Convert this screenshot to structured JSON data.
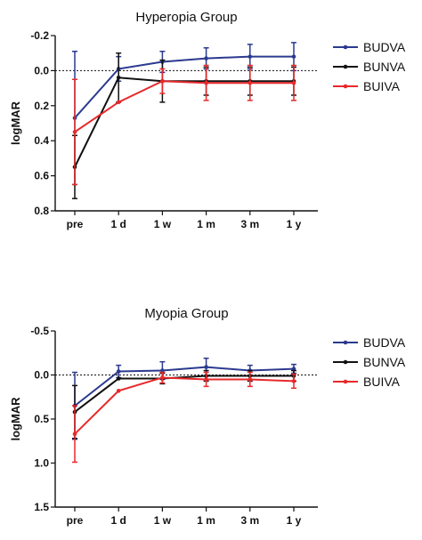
{
  "chart_data": [
    {
      "type": "line",
      "title": "Hyperopia Group",
      "xlabel": "",
      "ylabel": "logMAR",
      "categories": [
        "pre",
        "1 d",
        "1 w",
        "1 m",
        "3 m",
        "1 y"
      ],
      "ylim": [
        0.8,
        -0.2
      ],
      "yticks": [
        -0.2,
        0.0,
        0.2,
        0.4,
        0.6,
        0.8
      ],
      "ytick_labels": [
        "-0.2",
        "0.0",
        "0.2",
        "0.4",
        "0.6",
        "0.8"
      ],
      "reference_line": 0.0,
      "grid": false,
      "legend": "top-right",
      "series": [
        {
          "name": "BUDVA",
          "color": "#2b3a8f",
          "values": [
            0.27,
            -0.01,
            -0.05,
            -0.07,
            -0.08,
            -0.08
          ],
          "error": [
            0.38,
            0.07,
            0.06,
            0.06,
            0.07,
            0.08
          ]
        },
        {
          "name": "BUNVA",
          "color": "#111111",
          "values": [
            0.55,
            0.04,
            0.06,
            0.06,
            0.06,
            0.06
          ],
          "error": [
            0.18,
            0.14,
            0.12,
            0.08,
            0.08,
            0.08
          ]
        },
        {
          "name": "BUIVA",
          "color": "#e8282b",
          "values": [
            0.35,
            0.18,
            0.06,
            0.07,
            0.07,
            0.07
          ],
          "error": [
            0.3,
            0.0,
            0.07,
            0.1,
            0.1,
            0.1
          ]
        }
      ]
    },
    {
      "type": "line",
      "title": "Myopia Group",
      "xlabel": "",
      "ylabel": "logMAR",
      "categories": [
        "pre",
        "1 d",
        "1 w",
        "1 m",
        "3 m",
        "1 y"
      ],
      "ylim": [
        1.5,
        -0.5
      ],
      "yticks": [
        -0.5,
        0.0,
        0.5,
        1.0,
        1.5
      ],
      "ytick_labels": [
        "-0.5",
        "0.0",
        "0.5",
        "1.0",
        "1.5"
      ],
      "reference_line": 0.0,
      "grid": false,
      "legend": "top-right",
      "series": [
        {
          "name": "BUDVA",
          "color": "#2b3a8f",
          "values": [
            0.35,
            -0.04,
            -0.05,
            -0.09,
            -0.05,
            -0.07
          ],
          "error": [
            0.38,
            0.07,
            0.1,
            0.1,
            0.06,
            0.05
          ]
        },
        {
          "name": "BUNVA",
          "color": "#111111",
          "values": [
            0.42,
            0.04,
            0.04,
            0.01,
            0.01,
            0.01
          ],
          "error": [
            0.3,
            0.0,
            0.06,
            0.06,
            0.06,
            0.06
          ]
        },
        {
          "name": "BUIVA",
          "color": "#e8282b",
          "values": [
            0.67,
            0.18,
            0.03,
            0.05,
            0.05,
            0.07
          ],
          "error": [
            0.32,
            0.0,
            0.06,
            0.08,
            0.08,
            0.08
          ]
        }
      ]
    }
  ]
}
